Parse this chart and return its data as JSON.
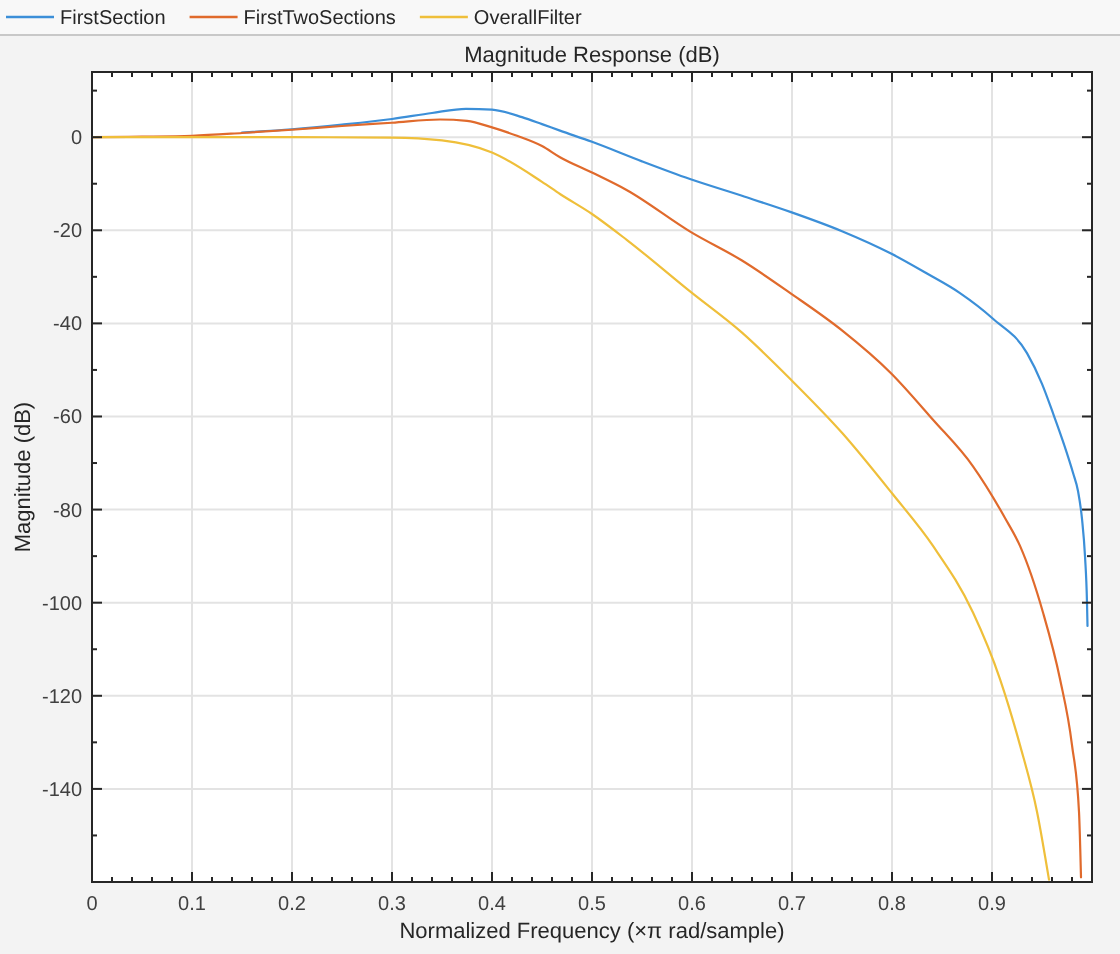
{
  "chart_data": {
    "type": "line",
    "title": "Magnitude Response (dB)",
    "xlabel": "Normalized Frequency (×π rad/sample)",
    "ylabel": "Magnitude (dB)",
    "xlim": [
      0,
      1
    ],
    "ylim": [
      -160,
      14
    ],
    "xticks": [
      0,
      {
        "value": 0.02,
        "label": null
      },
      {
        "value": 0.04,
        "label": null
      },
      {
        "value": 0.06,
        "label": null
      },
      {
        "value": 0.08,
        "label": null
      },
      0.1,
      {
        "value": 0.12,
        "label": null
      },
      {
        "value": 0.14,
        "label": null
      },
      {
        "value": 0.16,
        "label": null
      },
      {
        "value": 0.18,
        "label": null
      },
      0.2,
      {
        "value": 0.22,
        "label": null
      },
      {
        "value": 0.24,
        "label": null
      },
      {
        "value": 0.26,
        "label": null
      },
      {
        "value": 0.28,
        "label": null
      },
      0.3,
      {
        "value": 0.32,
        "label": null
      },
      {
        "value": 0.34,
        "label": null
      },
      {
        "value": 0.36,
        "label": null
      },
      {
        "value": 0.38,
        "label": null
      },
      0.4,
      {
        "value": 0.42,
        "label": null
      },
      {
        "value": 0.44,
        "label": null
      },
      {
        "value": 0.46,
        "label": null
      },
      {
        "value": 0.48,
        "label": null
      },
      0.5,
      {
        "value": 0.52,
        "label": null
      },
      {
        "value": 0.54,
        "label": null
      },
      {
        "value": 0.56,
        "label": null
      },
      {
        "value": 0.58,
        "label": null
      },
      0.6,
      {
        "value": 0.62,
        "label": null
      },
      {
        "value": 0.64,
        "label": null
      },
      {
        "value": 0.66,
        "label": null
      },
      {
        "value": 0.68,
        "label": null
      },
      0.7,
      {
        "value": 0.72,
        "label": null
      },
      {
        "value": 0.74,
        "label": null
      },
      {
        "value": 0.76,
        "label": null
      },
      {
        "value": 0.78,
        "label": null
      },
      0.8,
      {
        "value": 0.82,
        "label": null
      },
      {
        "value": 0.84,
        "label": null
      },
      {
        "value": 0.86,
        "label": null
      },
      {
        "value": 0.88,
        "label": null
      },
      0.9,
      {
        "value": 0.92,
        "label": null
      },
      {
        "value": 0.94,
        "label": null
      },
      {
        "value": 0.96,
        "label": null
      },
      {
        "value": 0.98,
        "label": null
      }
    ],
    "yticks": [
      {
        "value": -150,
        "label": null
      },
      -140,
      {
        "value": -130,
        "label": null
      },
      -120,
      {
        "value": -110,
        "label": null
      },
      -100,
      {
        "value": -90,
        "label": null
      },
      -80,
      {
        "value": -70,
        "label": null
      },
      -60,
      {
        "value": -50,
        "label": null
      },
      -40,
      {
        "value": -30,
        "label": null
      },
      -20,
      {
        "value": -10,
        "label": null
      },
      0,
      {
        "value": 10,
        "label": null
      }
    ],
    "grid": true,
    "legend": "top",
    "series": [
      {
        "name": "FirstSection",
        "color": "#3c8fd8",
        "x": [
          0.15,
          0.2,
          0.25,
          0.3,
          0.34,
          0.374,
          0.4,
          0.43,
          0.45,
          0.468,
          0.5,
          0.55,
          0.598,
          0.65,
          0.699,
          0.75,
          0.799,
          0.835,
          0.868,
          0.901,
          0.935,
          0.95,
          0.961,
          0.972,
          0.981,
          0.986,
          0.99,
          0.993,
          0.995,
          0.9955
        ],
        "values": [
          1,
          1.7,
          2.7,
          3.9,
          5.2,
          6.1,
          5.9,
          4.3,
          2.8,
          1.4,
          -1,
          -5.2,
          -9,
          -12.6,
          -16.1,
          -20.2,
          -25,
          -29.3,
          -33.5,
          -39,
          -46.4,
          -53,
          -59.3,
          -66,
          -72.1,
          -76,
          -82,
          -90,
          -100,
          -105
        ]
      },
      {
        "name": "FirstTwoSections",
        "color": "#e06a2c",
        "x": [
          0,
          0.05,
          0.1,
          0.15,
          0.2,
          0.25,
          0.3,
          0.348,
          0.375,
          0.4,
          0.425,
          0.45,
          0.468,
          0.5,
          0.535,
          0.599,
          0.65,
          0.699,
          0.75,
          0.799,
          0.841,
          0.881,
          0.913,
          0.928,
          0.951,
          0.968,
          0.98,
          0.987,
          0.989
        ],
        "values": [
          0,
          0.1,
          0.3,
          0.9,
          1.6,
          2.4,
          3.1,
          3.8,
          3.5,
          2.1,
          0.3,
          -1.9,
          -4.3,
          -7.6,
          -11.4,
          -20.4,
          -26.5,
          -33.6,
          -41.5,
          -50.7,
          -60.7,
          -70.7,
          -81.8,
          -87.8,
          -102.1,
          -116.4,
          -130.6,
          -144.9,
          -159
        ]
      },
      {
        "name": "OverallFilter",
        "color": "#efbf3a",
        "x": [
          0,
          0.1,
          0.2,
          0.3,
          0.35,
          0.4,
          0.45,
          0.468,
          0.5,
          0.535,
          0.599,
          0.65,
          0.699,
          0.75,
          0.8,
          0.841,
          0.881,
          0.908,
          0.928,
          0.945,
          0.957
        ],
        "values": [
          0,
          0,
          0,
          -0.1,
          -0.7,
          -3.3,
          -9.6,
          -12.2,
          -16.5,
          -22.1,
          -33.3,
          -42,
          -52.1,
          -63.5,
          -76.5,
          -87.8,
          -102.1,
          -116.4,
          -130.6,
          -144.9,
          -159.5
        ]
      }
    ]
  }
}
